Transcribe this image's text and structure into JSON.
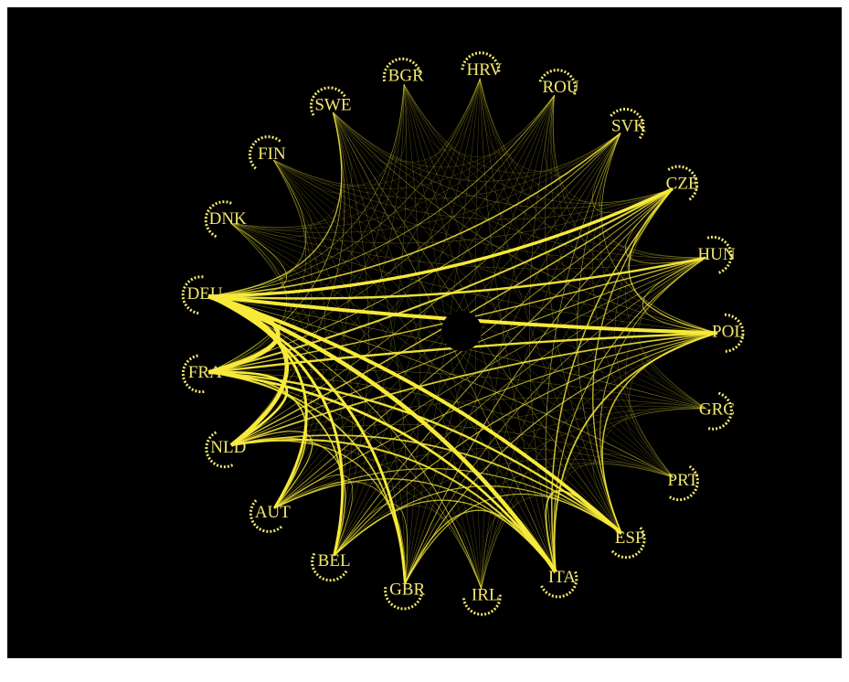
{
  "nodes": [
    {
      "label": "BGR"
    },
    {
      "label": "HRV"
    },
    {
      "label": "ROU"
    },
    {
      "label": "SVK"
    },
    {
      "label": "CZE"
    },
    {
      "label": "HUN"
    },
    {
      "label": "POL"
    },
    {
      "label": "GRC"
    },
    {
      "label": "PRT"
    },
    {
      "label": "ESP"
    },
    {
      "label": "ITA"
    },
    {
      "label": "IRL"
    },
    {
      "label": "GBR"
    },
    {
      "label": "BEL"
    },
    {
      "label": "AUT"
    },
    {
      "label": "NLD"
    },
    {
      "label": "FRA"
    },
    {
      "label": "DEU"
    },
    {
      "label": "DNK"
    },
    {
      "label": "FIN"
    },
    {
      "label": "SWE"
    }
  ]
}
